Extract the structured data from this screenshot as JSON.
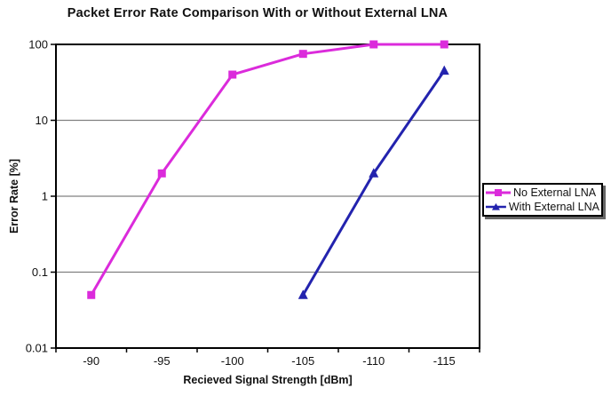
{
  "chart_data": {
    "type": "line",
    "title": "Packet Error Rate Comparison With or Without External LNA",
    "xlabel": "Recieved Signal Strength [dBm]",
    "ylabel": "Error Rate [%]",
    "x_categories": [
      "-90",
      "-95",
      "-100",
      "-105",
      "-110",
      "-115"
    ],
    "y_scale": "log",
    "ylim": [
      0.01,
      100
    ],
    "y_ticks": [
      100,
      10,
      1,
      0.1,
      0.01
    ],
    "y_tick_labels": [
      "100",
      "10",
      "1",
      "0.1",
      "0.01"
    ],
    "grid": "horizontal gridlines at each log decade",
    "legend_position": "outside right, boxed with drop shadow",
    "frame_color": "#000000",
    "gridline_color": "#808080",
    "series": [
      {
        "name": "No External LNA",
        "color": "#DB2BDB",
        "marker": "square",
        "values": [
          0.05,
          2,
          40,
          75,
          100,
          100
        ]
      },
      {
        "name": "With External LNA",
        "color": "#2323AE",
        "marker": "triangle-up",
        "values": [
          null,
          null,
          null,
          0.05,
          2,
          45
        ]
      }
    ]
  }
}
